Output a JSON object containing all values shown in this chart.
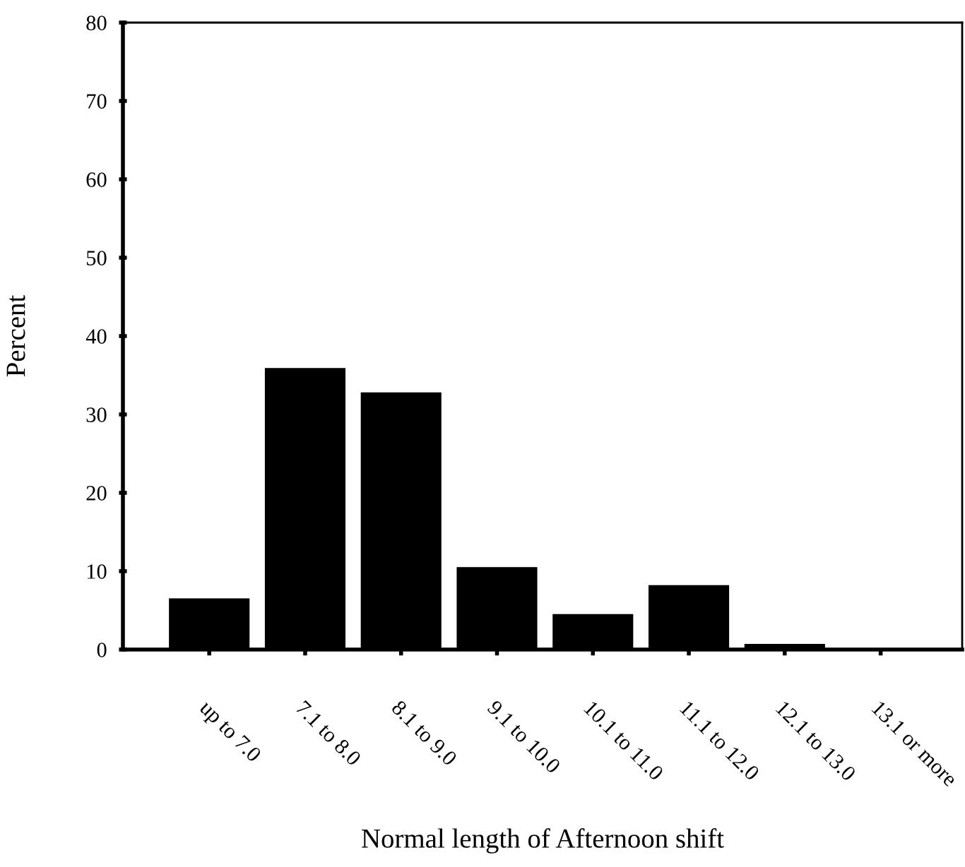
{
  "chart_data": {
    "type": "bar",
    "xlabel": "Normal length of Afternoon shift",
    "ylabel": "Percent",
    "categories": [
      "up to 7.0",
      "7.1 to 8.0",
      "8.1 to 9.0",
      "9.1 to 10.0",
      "10.1 to 11.0",
      "11.1 to 12.0",
      "12.1 to 13.0",
      "13.1 or more"
    ],
    "values": [
      6.4,
      35.8,
      32.7,
      10.4,
      4.4,
      8.1,
      0.6,
      0
    ],
    "color": "#000000",
    "ylim": [
      0,
      80
    ],
    "yticks": [
      0,
      10,
      20,
      30,
      40,
      50,
      60,
      70,
      80
    ],
    "grid": false
  }
}
